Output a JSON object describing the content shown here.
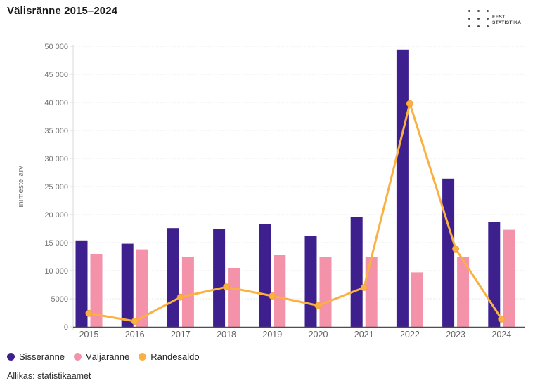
{
  "header": {
    "title": "Välisränne 2015–2024",
    "logo": {
      "line1": "EESTI",
      "line2": "STATISTIKA"
    }
  },
  "chart_data": {
    "type": "bar",
    "title": "Välisränne 2015–2024",
    "categories": [
      "2015",
      "2016",
      "2017",
      "2018",
      "2019",
      "2020",
      "2021",
      "2022",
      "2023",
      "2024"
    ],
    "series": [
      {
        "name": "Sisseränne",
        "type": "bar",
        "color": "#3d1f8e",
        "values": [
          15400,
          14800,
          17600,
          17500,
          18300,
          16200,
          19600,
          49400,
          26400,
          18700
        ]
      },
      {
        "name": "Väljaränne",
        "type": "bar",
        "color": "#f492a9",
        "values": [
          13000,
          13800,
          12400,
          10500,
          12800,
          12400,
          12500,
          9700,
          12500,
          17300
        ]
      },
      {
        "name": "Rändesaldo",
        "type": "line",
        "color": "#fbb042",
        "values": [
          2400,
          1000,
          5300,
          7100,
          5500,
          3800,
          7000,
          39800,
          13900,
          1400
        ]
      }
    ],
    "xlabel": "",
    "ylabel": "inimeste arv",
    "ylim": [
      0,
      50000
    ],
    "y_ticks": [
      {
        "value": 0,
        "label": "0"
      },
      {
        "value": 5000,
        "label": "5000"
      },
      {
        "value": 10000,
        "label": "10 000"
      },
      {
        "value": 15000,
        "label": "15 000"
      },
      {
        "value": 20000,
        "label": "20 000"
      },
      {
        "value": 25000,
        "label": "25 000"
      },
      {
        "value": 30000,
        "label": "30 000"
      },
      {
        "value": 35000,
        "label": "35 000"
      },
      {
        "value": 40000,
        "label": "40 000"
      },
      {
        "value": 45000,
        "label": "45 000"
      },
      {
        "value": 50000,
        "label": "50 000"
      }
    ],
    "grid": "horizontal-dotted",
    "legend_position": "bottom-left",
    "colors": {
      "grid": "#eaeaea",
      "axis": "#4f4f4f",
      "axis_light": "#d9d9d9",
      "tick_text": "#757575",
      "year_text": "#5f5f5f"
    }
  },
  "footer": {
    "source": "Allikas: statistikaamet"
  }
}
